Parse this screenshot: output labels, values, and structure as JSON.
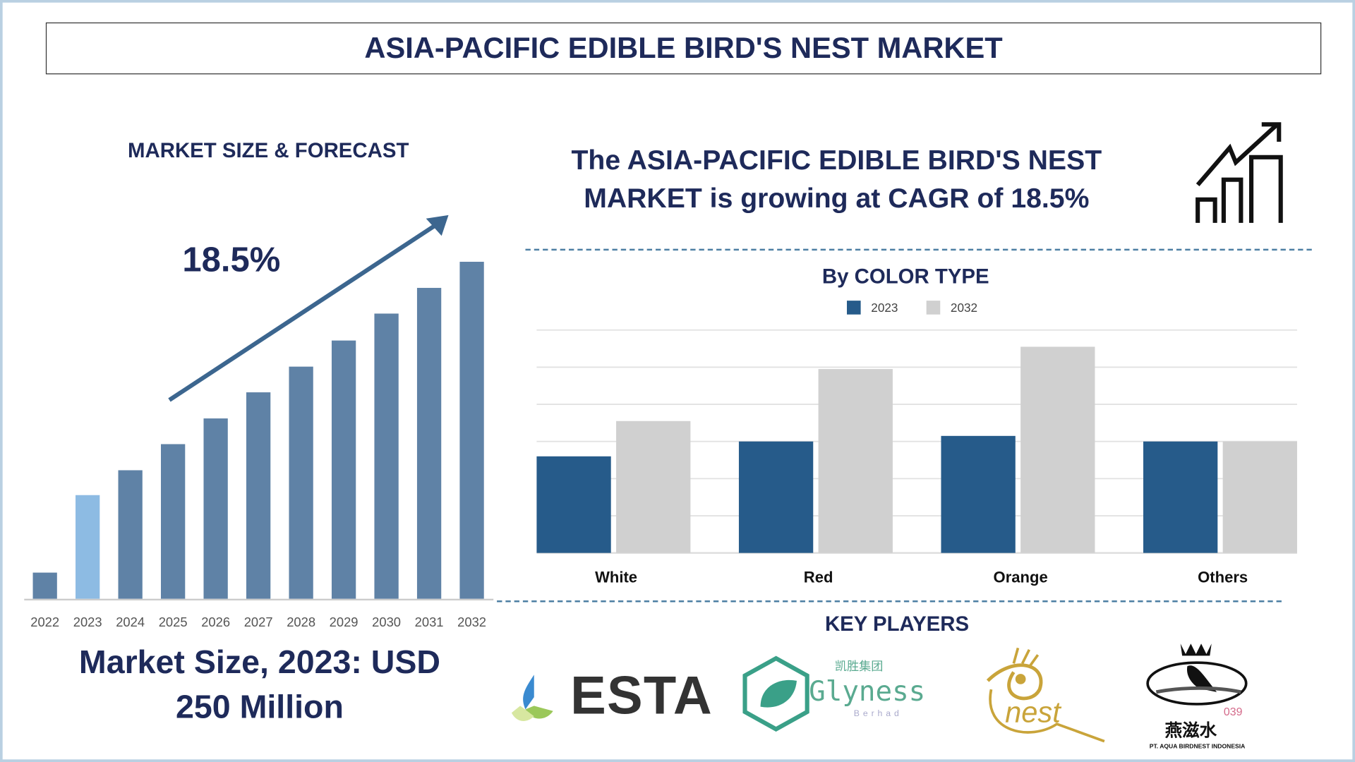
{
  "title": "ASIA-PACIFIC EDIBLE BIRD'S NEST MARKET",
  "left_panel": {
    "heading": "MARKET SIZE & FORECAST",
    "cagr_label": "18.5%",
    "market_size_line1": "Market Size, 2023: USD",
    "market_size_line2": "250 Million"
  },
  "headline": {
    "line1": "The ASIA-PACIFIC EDIBLE BIRD'S NEST",
    "line2": "MARKET is growing at CAGR of 18.5%",
    "icon": "growth-chart-icon"
  },
  "key_players": {
    "heading": "KEY PLAYERS",
    "logos": [
      {
        "name": "ESTA"
      },
      {
        "name": "Glyness",
        "sub": "Berhad",
        "cn": "凯胜集团"
      },
      {
        "name": "nest"
      },
      {
        "name": "PT. AQUA BIRDNEST INDONESIA",
        "cn": "燕滋水",
        "num": "039"
      }
    ]
  },
  "colors": {
    "navy": "#1e2a5a",
    "bar": "#5f82a6",
    "bar_highlight": "#8dbbe3",
    "series_2023": "#265b8a",
    "series_2032": "#d0d0d0",
    "arrow": "#3c668f"
  },
  "chart_data": [
    {
      "type": "bar",
      "title": "MARKET SIZE & FORECAST",
      "categories": [
        "2022",
        "2023",
        "2024",
        "2025",
        "2026",
        "2027",
        "2028",
        "2029",
        "2030",
        "2031",
        "2032"
      ],
      "values": [
        63,
        250,
        310,
        373,
        435,
        498,
        560,
        623,
        688,
        750,
        813
      ],
      "highlight": "2023",
      "annotation": "18.5%",
      "grid": false
    },
    {
      "type": "bar",
      "title": "By COLOR TYPE",
      "categories": [
        "White",
        "Red",
        "Orange",
        "Others"
      ],
      "series": [
        {
          "name": "2023",
          "values": [
            2.6,
            3.0,
            3.15,
            3.0
          ]
        },
        {
          "name": "2032",
          "values": [
            3.55,
            4.95,
            5.55,
            3.0
          ]
        }
      ],
      "ylim": [
        0,
        6
      ],
      "grid": true,
      "legend": "top"
    }
  ]
}
